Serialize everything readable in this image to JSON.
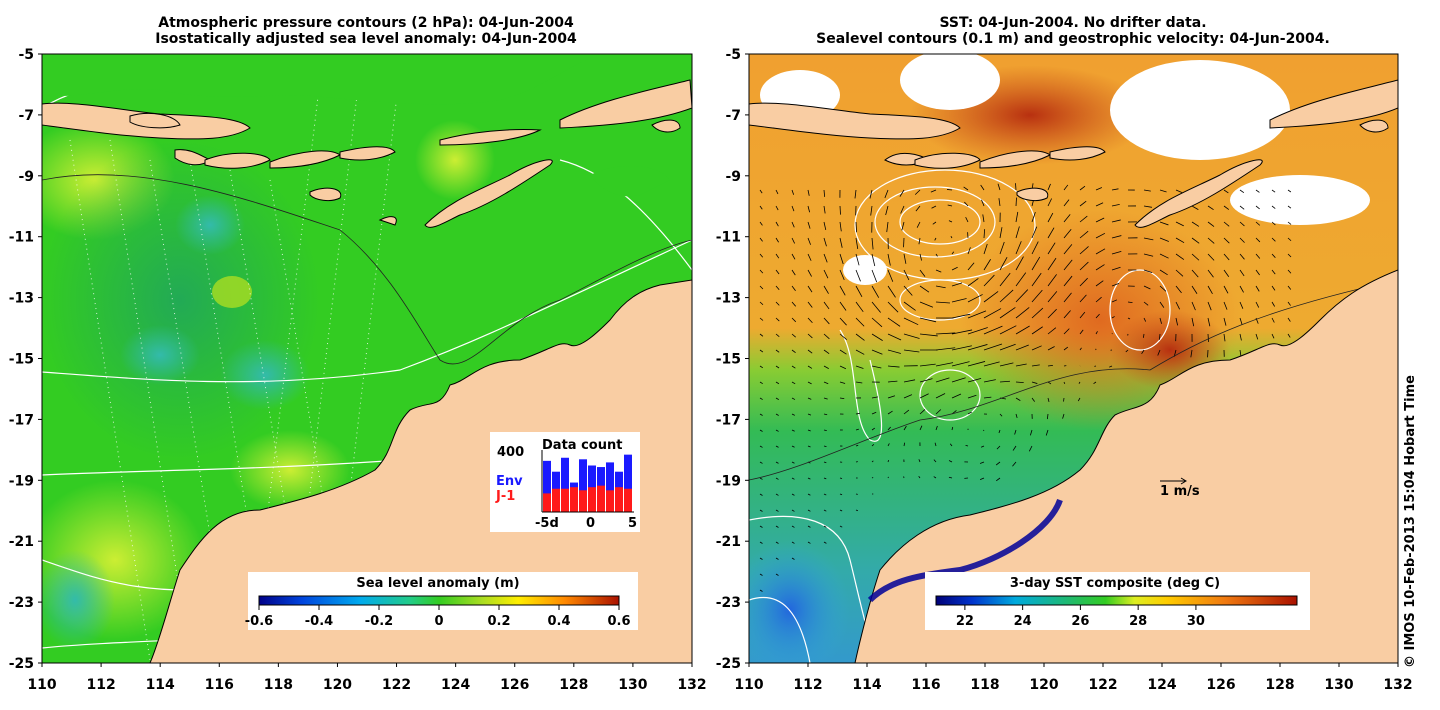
{
  "left_map": {
    "title_line1": "Atmospheric pressure contours (2 hPa): 04-Jun-2004",
    "title_line2": "Isostatically adjusted sea level anomaly: 04-Jun-2004",
    "colorbar": {
      "label": "Sea level anomaly (m)",
      "ticks": [
        "-0.6",
        "-0.4",
        "-0.2",
        "0",
        "0.2",
        "0.4",
        "0.6"
      ]
    },
    "data_count": {
      "title": "Data count",
      "ymax_label": "400",
      "legend_env": "Env",
      "legend_j1": "J-1",
      "env_color": "#1a1aff",
      "j1_color": "#ff1a1a",
      "x_ticks": [
        "-5d",
        "0",
        "5"
      ],
      "env_totals": [
        330,
        260,
        350,
        190,
        340,
        300,
        290,
        320,
        260,
        370
      ],
      "j1_values": [
        120,
        150,
        150,
        160,
        140,
        160,
        170,
        140,
        160,
        150
      ]
    }
  },
  "right_map": {
    "title_line1": "SST: 04-Jun-2004. No drifter data.",
    "title_line2": "Sealevel contours (0.1 m) and geostrophic velocity: 04-Jun-2004.",
    "scale_label": "1 m/s",
    "colorbar": {
      "label": "3-day SST composite (deg C)",
      "ticks": [
        "22",
        "24",
        "26",
        "28",
        "30"
      ]
    }
  },
  "axes": {
    "y_ticks": [
      "-5",
      "-7",
      "-9",
      "-11",
      "-13",
      "-15",
      "-17",
      "-19",
      "-21",
      "-23",
      "-25"
    ],
    "x_ticks": [
      "110",
      "112",
      "114",
      "116",
      "118",
      "120",
      "122",
      "124",
      "126",
      "128",
      "130",
      "132"
    ]
  },
  "colors": {
    "land": "#f9cda3",
    "sea_left": "#33cc22",
    "sea_right_warm": "#f0a030",
    "sea_right_cool": "#33bb55"
  },
  "copyright": "© IMOS 10-Feb-2013 15:04 Hobart Time"
}
